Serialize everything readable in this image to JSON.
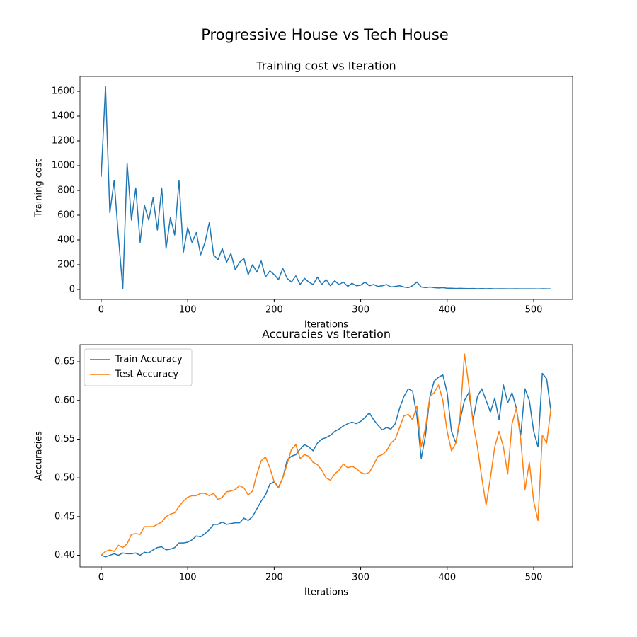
{
  "title": "Progressive House vs Tech House",
  "chart_data": [
    {
      "type": "line",
      "title": "Training cost vs Iteration",
      "xlabel": "Iterations",
      "ylabel": "Training cost",
      "x": [
        0,
        5,
        10,
        15,
        20,
        25,
        30,
        35,
        40,
        45,
        50,
        55,
        60,
        65,
        70,
        75,
        80,
        85,
        90,
        95,
        100,
        105,
        110,
        115,
        120,
        125,
        130,
        135,
        140,
        145,
        150,
        155,
        160,
        165,
        170,
        175,
        180,
        185,
        190,
        195,
        200,
        205,
        210,
        215,
        220,
        225,
        230,
        235,
        240,
        245,
        250,
        255,
        260,
        265,
        270,
        275,
        280,
        285,
        290,
        295,
        300,
        305,
        310,
        315,
        320,
        325,
        330,
        335,
        340,
        345,
        350,
        355,
        360,
        365,
        370,
        375,
        380,
        385,
        390,
        395,
        400,
        405,
        410,
        415,
        420,
        425,
        430,
        435,
        440,
        445,
        450,
        455,
        460,
        465,
        470,
        475,
        480,
        485,
        490,
        495,
        500,
        505,
        510,
        515,
        520
      ],
      "values": [
        910,
        1640,
        620,
        880,
        420,
        5,
        1020,
        560,
        820,
        380,
        680,
        560,
        740,
        480,
        820,
        330,
        580,
        440,
        880,
        300,
        500,
        380,
        460,
        280,
        380,
        540,
        280,
        240,
        330,
        220,
        290,
        160,
        220,
        250,
        120,
        200,
        140,
        230,
        100,
        150,
        120,
        80,
        170,
        90,
        60,
        110,
        40,
        90,
        60,
        40,
        100,
        40,
        80,
        30,
        70,
        40,
        60,
        25,
        50,
        30,
        35,
        60,
        30,
        40,
        25,
        30,
        40,
        20,
        25,
        30,
        20,
        15,
        30,
        60,
        20,
        15,
        20,
        15,
        12,
        15,
        10,
        10,
        8,
        9,
        8,
        7,
        8,
        6,
        7,
        6,
        7,
        5,
        6,
        6,
        5,
        5,
        6,
        5,
        5,
        5,
        5,
        4,
        6,
        5,
        4
      ],
      "color": "#1f77b4",
      "xlim": [
        -24.5,
        545
      ],
      "xticks": [
        0,
        100,
        200,
        300,
        400,
        500
      ],
      "ylim": [
        -80,
        1720
      ],
      "yticks": [
        0,
        200,
        400,
        600,
        800,
        1000,
        1200,
        1400,
        1600
      ]
    },
    {
      "type": "line",
      "title": "Accuracies vs Iteration",
      "xlabel": "Iterations",
      "ylabel": "Accuracies",
      "legend": "upper left",
      "x": [
        0,
        5,
        10,
        15,
        20,
        25,
        30,
        35,
        40,
        45,
        50,
        55,
        60,
        65,
        70,
        75,
        80,
        85,
        90,
        95,
        100,
        105,
        110,
        115,
        120,
        125,
        130,
        135,
        140,
        145,
        150,
        155,
        160,
        165,
        170,
        175,
        180,
        185,
        190,
        195,
        200,
        205,
        210,
        215,
        220,
        225,
        230,
        235,
        240,
        245,
        250,
        255,
        260,
        265,
        270,
        275,
        280,
        285,
        290,
        295,
        300,
        305,
        310,
        315,
        320,
        325,
        330,
        335,
        340,
        345,
        350,
        355,
        360,
        365,
        370,
        375,
        380,
        385,
        390,
        395,
        400,
        405,
        410,
        415,
        420,
        425,
        430,
        435,
        440,
        445,
        450,
        455,
        460,
        465,
        470,
        475,
        480,
        485,
        490,
        495,
        500,
        505,
        510,
        515,
        520
      ],
      "series": [
        {
          "name": "Train Accuracy",
          "color": "#1f77b4",
          "values": [
            0.4,
            0.398,
            0.4,
            0.402,
            0.4,
            0.403,
            0.402,
            0.402,
            0.403,
            0.4,
            0.404,
            0.403,
            0.407,
            0.41,
            0.411,
            0.407,
            0.408,
            0.41,
            0.416,
            0.416,
            0.417,
            0.42,
            0.425,
            0.424,
            0.428,
            0.433,
            0.44,
            0.44,
            0.443,
            0.44,
            0.441,
            0.442,
            0.442,
            0.448,
            0.445,
            0.45,
            0.46,
            0.47,
            0.478,
            0.492,
            0.495,
            0.488,
            0.5,
            0.523,
            0.528,
            0.53,
            0.537,
            0.543,
            0.54,
            0.535,
            0.545,
            0.55,
            0.552,
            0.555,
            0.56,
            0.563,
            0.567,
            0.57,
            0.572,
            0.57,
            0.573,
            0.578,
            0.584,
            0.575,
            0.568,
            0.562,
            0.565,
            0.563,
            0.57,
            0.59,
            0.605,
            0.615,
            0.612,
            0.58,
            0.525,
            0.555,
            0.605,
            0.625,
            0.63,
            0.633,
            0.61,
            0.56,
            0.545,
            0.575,
            0.6,
            0.61,
            0.575,
            0.605,
            0.615,
            0.6,
            0.585,
            0.603,
            0.575,
            0.62,
            0.597,
            0.61,
            0.59,
            0.555,
            0.615,
            0.6,
            0.56,
            0.54,
            0.635,
            0.628,
            0.585
          ]
        },
        {
          "name": "Test Accuracy",
          "color": "#ff7f0e",
          "values": [
            0.4,
            0.405,
            0.407,
            0.405,
            0.413,
            0.41,
            0.415,
            0.427,
            0.428,
            0.427,
            0.437,
            0.437,
            0.437,
            0.44,
            0.443,
            0.45,
            0.453,
            0.455,
            0.463,
            0.47,
            0.475,
            0.477,
            0.477,
            0.48,
            0.48,
            0.477,
            0.48,
            0.472,
            0.475,
            0.482,
            0.483,
            0.485,
            0.49,
            0.487,
            0.478,
            0.483,
            0.505,
            0.522,
            0.527,
            0.513,
            0.495,
            0.487,
            0.5,
            0.518,
            0.537,
            0.543,
            0.525,
            0.53,
            0.528,
            0.52,
            0.517,
            0.51,
            0.5,
            0.497,
            0.505,
            0.51,
            0.518,
            0.513,
            0.515,
            0.512,
            0.507,
            0.505,
            0.507,
            0.517,
            0.528,
            0.53,
            0.535,
            0.545,
            0.55,
            0.565,
            0.58,
            0.582,
            0.575,
            0.593,
            0.54,
            0.565,
            0.605,
            0.61,
            0.62,
            0.6,
            0.56,
            0.535,
            0.545,
            0.58,
            0.66,
            0.62,
            0.57,
            0.54,
            0.5,
            0.465,
            0.5,
            0.54,
            0.56,
            0.54,
            0.505,
            0.57,
            0.59,
            0.55,
            0.485,
            0.52,
            0.47,
            0.445,
            0.555,
            0.545,
            0.59
          ]
        }
      ],
      "xlim": [
        -24.5,
        545
      ],
      "xticks": [
        0,
        100,
        200,
        300,
        400,
        500
      ],
      "ylim": [
        0.385,
        0.672
      ],
      "yticks": [
        {
          "value": 0.4,
          "label": "0.40"
        },
        0.45,
        {
          "value": 0.5,
          "label": "0.50"
        },
        0.55,
        {
          "value": 0.6,
          "label": "0.60"
        },
        0.65
      ]
    }
  ]
}
